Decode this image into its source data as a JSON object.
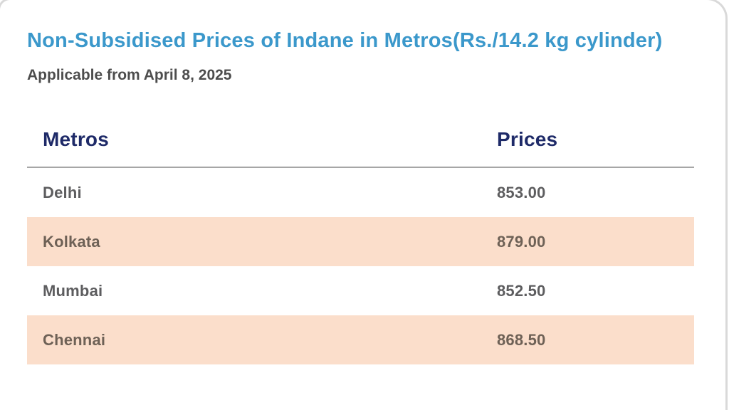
{
  "page": {
    "title": "Non-Subsidised Prices of Indane in Metros(Rs./14.2 kg cylinder)",
    "subtitle": "Applicable from April 8, 2025"
  },
  "table": {
    "columns": {
      "metros": "Metros",
      "prices": "Prices"
    },
    "rows": [
      {
        "metro": "Delhi",
        "price": "853.00",
        "highlighted": false
      },
      {
        "metro": "Kolkata",
        "price": "879.00",
        "highlighted": true
      },
      {
        "metro": "Mumbai",
        "price": "852.50",
        "highlighted": false
      },
      {
        "metro": "Chennai",
        "price": "868.50",
        "highlighted": true
      }
    ]
  },
  "colors": {
    "title_blue": "#3b98cb",
    "header_navy": "#1e2a68",
    "subtitle_gray": "#4d4d4d",
    "divider_gray": "#a6a6a6",
    "row_highlight_peach": "#fbdecb",
    "row_text_gray": "#5d5d5f",
    "row_text_brown": "#6e6156"
  },
  "chart_data": {
    "type": "table",
    "title": "Non-Subsidised Prices of Indane in Metros(Rs./14.2 kg cylinder)",
    "subtitle": "Applicable from April 8, 2025",
    "columns": [
      "Metros",
      "Prices"
    ],
    "rows": [
      [
        "Delhi",
        853.0
      ],
      [
        "Kolkata",
        879.0
      ],
      [
        "Mumbai",
        852.5
      ],
      [
        "Chennai",
        868.5
      ]
    ],
    "highlighted_rows": [
      "Kolkata",
      "Chennai"
    ],
    "unit": "Rs. per 14.2 kg cylinder"
  }
}
